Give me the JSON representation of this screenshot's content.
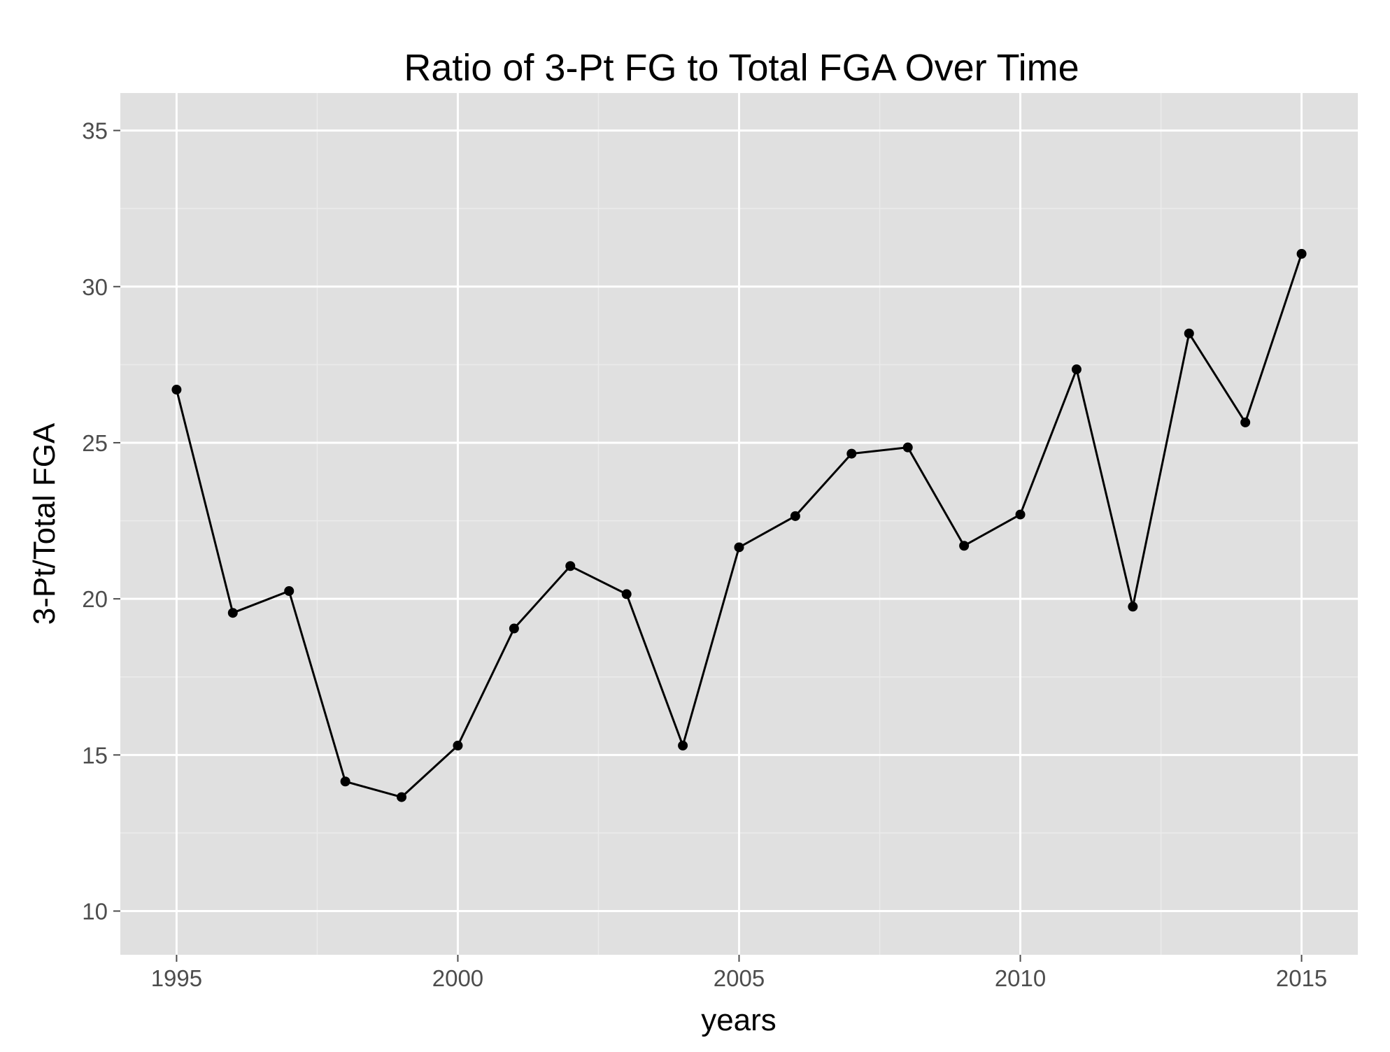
{
  "chart_data": {
    "type": "line",
    "title": "Ratio of 3-Pt FG to Total FGA Over Time",
    "xlabel": "years",
    "ylabel": "3-Pt/Total FGA",
    "xlim": [
      1994,
      2016
    ],
    "ylim": [
      8.6,
      36.2
    ],
    "x_ticks": [
      1995,
      2000,
      2005,
      2010,
      2015
    ],
    "x_minor_ticks": [
      1997.5,
      2002.5,
      2007.5,
      2012.5
    ],
    "y_ticks": [
      10,
      15,
      20,
      25,
      30,
      35
    ],
    "y_minor_ticks": [
      12.5,
      17.5,
      22.5,
      27.5,
      32.5
    ],
    "grid": true,
    "colors": {
      "panel": "#e0e0e0",
      "grid_major": "#ffffff",
      "grid_minor": "#ebebeb",
      "line": "#000000",
      "point": "#000000"
    },
    "series": [
      {
        "x": [
          1995,
          1996,
          1997,
          1998,
          1999,
          2000,
          2001,
          2002,
          2003,
          2004,
          2005,
          2006,
          2007,
          2008,
          2009,
          2010,
          2011,
          2012,
          2013,
          2014,
          2015
        ],
        "y": [
          26.7,
          19.55,
          20.25,
          14.15,
          13.65,
          15.3,
          19.05,
          21.05,
          20.15,
          15.3,
          21.65,
          22.65,
          24.65,
          24.85,
          21.7,
          22.7,
          27.35,
          19.75,
          28.5,
          25.65,
          31.05
        ]
      }
    ]
  }
}
